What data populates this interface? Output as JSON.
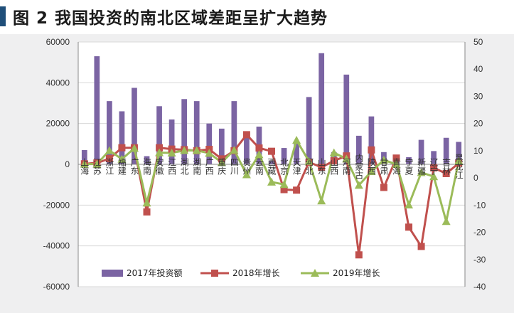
{
  "figure": {
    "title": "图 2  我国投资的南北区域差距呈扩大趋势"
  },
  "chart_data": {
    "type": "bar",
    "categories": [
      "上海",
      "江苏",
      "浙江",
      "福建",
      "广东",
      "海南",
      "安徽",
      "江西",
      "湖北",
      "湖南",
      "广西",
      "重庆",
      "四川",
      "贵州",
      "云南",
      "西藏",
      "北京",
      "天津",
      "河北",
      "山东",
      "山西",
      "河南",
      "内蒙古",
      "陕西",
      "甘肃",
      "青海",
      "宁夏",
      "新疆",
      "辽宁",
      "吉林",
      "黑龙江"
    ],
    "y_left": {
      "min": -60000,
      "max": 60000,
      "step": 20000,
      "ticks": [
        "60000",
        "40000",
        "20000",
        "0",
        "-20000",
        "-40000",
        "-60000"
      ]
    },
    "y_right": {
      "min": -40,
      "max": 50,
      "step": 10,
      "ticks": [
        "50",
        "40",
        "30",
        "20",
        "10",
        "0",
        "-10",
        "-20",
        "-30",
        "-40"
      ]
    },
    "series": [
      {
        "name": "2017年投资额",
        "type": "bar",
        "axis": "left",
        "color": "#7b64a3",
        "values": [
          7000,
          53000,
          31000,
          26000,
          37500,
          4000,
          28500,
          22000,
          32000,
          31000,
          20000,
          17500,
          31000,
          13000,
          18500,
          1500,
          8000,
          11000,
          33000,
          54500,
          6000,
          44000,
          14000,
          23500,
          6000,
          4000,
          3500,
          12000,
          6500,
          13000,
          11000
        ]
      },
      {
        "name": "2018年增长",
        "type": "line",
        "axis": "right",
        "color": "#c0504d",
        "values": [
          5.2,
          5.5,
          7.1,
          11.1,
          11.1,
          -12.5,
          11.1,
          10.6,
          10.4,
          10.0,
          10.5,
          7.0,
          10.0,
          15.9,
          11.0,
          9.8,
          -4.3,
          -4.5,
          5.8,
          3.9,
          6.3,
          8.1,
          -28.3,
          10.3,
          -3.5,
          7.3,
          -18.1,
          -25.2,
          3.7,
          1.6,
          5.4
        ]
      },
      {
        "name": "2019年增长",
        "type": "line",
        "axis": "right",
        "color": "#9bbb59",
        "values": [
          5.1,
          5.1,
          10.1,
          6.9,
          10.9,
          -9.2,
          9.3,
          9.2,
          10.1,
          10.1,
          9.1,
          5.7,
          10.2,
          1.2,
          8.6,
          -1.5,
          -2.4,
          13.9,
          6.1,
          -8.4,
          9.3,
          7.0,
          -2.7,
          2.4,
          6.6,
          5.0,
          -9.9,
          2.0,
          0.5,
          -16.0,
          6.3
        ]
      }
    ],
    "legend": {
      "position": "bottom",
      "labels": [
        "2017年投资额",
        "2018年增长",
        "2019年增长"
      ]
    },
    "grid": true
  }
}
